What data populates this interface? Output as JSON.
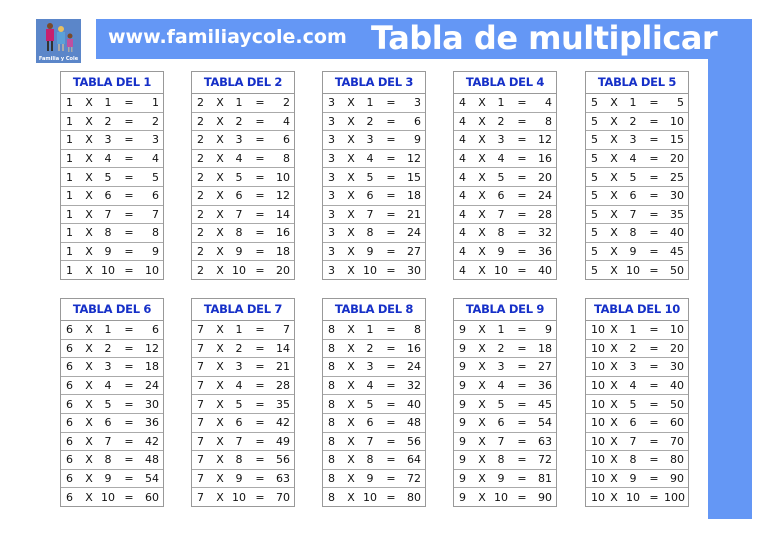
{
  "header": {
    "logo_text": "Familia y Cole",
    "site": "www.familiaycole.com",
    "title": "Tabla de multiplicar"
  },
  "colors": {
    "banner": "#6497f5",
    "table_title": "#1630c8"
  },
  "tables": [
    {
      "title": "TABLA DEL 1",
      "rows": [
        [
          "1",
          "X",
          "1",
          "=",
          "1"
        ],
        [
          "1",
          "X",
          "2",
          "=",
          "2"
        ],
        [
          "1",
          "X",
          "3",
          "=",
          "3"
        ],
        [
          "1",
          "X",
          "4",
          "=",
          "4"
        ],
        [
          "1",
          "X",
          "5",
          "=",
          "5"
        ],
        [
          "1",
          "X",
          "6",
          "=",
          "6"
        ],
        [
          "1",
          "X",
          "7",
          "=",
          "7"
        ],
        [
          "1",
          "X",
          "8",
          "=",
          "8"
        ],
        [
          "1",
          "X",
          "9",
          "=",
          "9"
        ],
        [
          "1",
          "X",
          "10",
          "=",
          "10"
        ]
      ]
    },
    {
      "title": "TABLA DEL 2",
      "rows": [
        [
          "2",
          "X",
          "1",
          "=",
          "2"
        ],
        [
          "2",
          "X",
          "2",
          "=",
          "4"
        ],
        [
          "2",
          "X",
          "3",
          "=",
          "6"
        ],
        [
          "2",
          "X",
          "4",
          "=",
          "8"
        ],
        [
          "2",
          "X",
          "5",
          "=",
          "10"
        ],
        [
          "2",
          "X",
          "6",
          "=",
          "12"
        ],
        [
          "2",
          "X",
          "7",
          "=",
          "14"
        ],
        [
          "2",
          "X",
          "8",
          "=",
          "16"
        ],
        [
          "2",
          "X",
          "9",
          "=",
          "18"
        ],
        [
          "2",
          "X",
          "10",
          "=",
          "20"
        ]
      ]
    },
    {
      "title": "TABLA DEL 3",
      "rows": [
        [
          "3",
          "X",
          "1",
          "=",
          "3"
        ],
        [
          "3",
          "X",
          "2",
          "=",
          "6"
        ],
        [
          "3",
          "X",
          "3",
          "=",
          "9"
        ],
        [
          "3",
          "X",
          "4",
          "=",
          "12"
        ],
        [
          "3",
          "X",
          "5",
          "=",
          "15"
        ],
        [
          "3",
          "X",
          "6",
          "=",
          "18"
        ],
        [
          "3",
          "X",
          "7",
          "=",
          "21"
        ],
        [
          "3",
          "X",
          "8",
          "=",
          "24"
        ],
        [
          "3",
          "X",
          "9",
          "=",
          "27"
        ],
        [
          "3",
          "X",
          "10",
          "=",
          "30"
        ]
      ]
    },
    {
      "title": "TABLA DEL 4",
      "rows": [
        [
          "4",
          "X",
          "1",
          "=",
          "4"
        ],
        [
          "4",
          "X",
          "2",
          "=",
          "8"
        ],
        [
          "4",
          "X",
          "3",
          "=",
          "12"
        ],
        [
          "4",
          "X",
          "4",
          "=",
          "16"
        ],
        [
          "4",
          "X",
          "5",
          "=",
          "20"
        ],
        [
          "4",
          "X",
          "6",
          "=",
          "24"
        ],
        [
          "4",
          "X",
          "7",
          "=",
          "28"
        ],
        [
          "4",
          "X",
          "8",
          "=",
          "32"
        ],
        [
          "4",
          "X",
          "9",
          "=",
          "36"
        ],
        [
          "4",
          "X",
          "10",
          "=",
          "40"
        ]
      ]
    },
    {
      "title": "TABLA DEL 5",
      "rows": [
        [
          "5",
          "X",
          "1",
          "=",
          "5"
        ],
        [
          "5",
          "X",
          "2",
          "=",
          "10"
        ],
        [
          "5",
          "X",
          "3",
          "=",
          "15"
        ],
        [
          "5",
          "X",
          "4",
          "=",
          "20"
        ],
        [
          "5",
          "X",
          "5",
          "=",
          "25"
        ],
        [
          "5",
          "X",
          "6",
          "=",
          "30"
        ],
        [
          "5",
          "X",
          "7",
          "=",
          "35"
        ],
        [
          "5",
          "X",
          "8",
          "=",
          "40"
        ],
        [
          "5",
          "X",
          "9",
          "=",
          "45"
        ],
        [
          "5",
          "X",
          "10",
          "=",
          "50"
        ]
      ]
    },
    {
      "title": "TABLA DEL 6",
      "rows": [
        [
          "6",
          "X",
          "1",
          "=",
          "6"
        ],
        [
          "6",
          "X",
          "2",
          "=",
          "12"
        ],
        [
          "6",
          "X",
          "3",
          "=",
          "18"
        ],
        [
          "6",
          "X",
          "4",
          "=",
          "24"
        ],
        [
          "6",
          "X",
          "5",
          "=",
          "30"
        ],
        [
          "6",
          "X",
          "6",
          "=",
          "36"
        ],
        [
          "6",
          "X",
          "7",
          "=",
          "42"
        ],
        [
          "6",
          "X",
          "8",
          "=",
          "48"
        ],
        [
          "6",
          "X",
          "9",
          "=",
          "54"
        ],
        [
          "6",
          "X",
          "10",
          "=",
          "60"
        ]
      ]
    },
    {
      "title": "TABLA DEL 7",
      "rows": [
        [
          "7",
          "X",
          "1",
          "=",
          "7"
        ],
        [
          "7",
          "X",
          "2",
          "=",
          "14"
        ],
        [
          "7",
          "X",
          "3",
          "=",
          "21"
        ],
        [
          "7",
          "X",
          "4",
          "=",
          "28"
        ],
        [
          "7",
          "X",
          "5",
          "=",
          "35"
        ],
        [
          "7",
          "X",
          "6",
          "=",
          "42"
        ],
        [
          "7",
          "X",
          "7",
          "=",
          "49"
        ],
        [
          "7",
          "X",
          "8",
          "=",
          "56"
        ],
        [
          "7",
          "X",
          "9",
          "=",
          "63"
        ],
        [
          "7",
          "X",
          "10",
          "=",
          "70"
        ]
      ]
    },
    {
      "title": "TABLA DEL 8",
      "rows": [
        [
          "8",
          "X",
          "1",
          "=",
          "8"
        ],
        [
          "8",
          "X",
          "2",
          "=",
          "16"
        ],
        [
          "8",
          "X",
          "3",
          "=",
          "24"
        ],
        [
          "8",
          "X",
          "4",
          "=",
          "32"
        ],
        [
          "8",
          "X",
          "5",
          "=",
          "40"
        ],
        [
          "8",
          "X",
          "6",
          "=",
          "48"
        ],
        [
          "8",
          "X",
          "7",
          "=",
          "56"
        ],
        [
          "8",
          "X",
          "8",
          "=",
          "64"
        ],
        [
          "8",
          "X",
          "9",
          "=",
          "72"
        ],
        [
          "8",
          "X",
          "10",
          "=",
          "80"
        ]
      ]
    },
    {
      "title": "TABLA DEL 9",
      "rows": [
        [
          "9",
          "X",
          "1",
          "=",
          "9"
        ],
        [
          "9",
          "X",
          "2",
          "=",
          "18"
        ],
        [
          "9",
          "X",
          "3",
          "=",
          "27"
        ],
        [
          "9",
          "X",
          "4",
          "=",
          "36"
        ],
        [
          "9",
          "X",
          "5",
          "=",
          "45"
        ],
        [
          "9",
          "X",
          "6",
          "=",
          "54"
        ],
        [
          "9",
          "X",
          "7",
          "=",
          "63"
        ],
        [
          "9",
          "X",
          "8",
          "=",
          "72"
        ],
        [
          "9",
          "X",
          "9",
          "=",
          "81"
        ],
        [
          "9",
          "X",
          "10",
          "=",
          "90"
        ]
      ]
    },
    {
      "title": "TABLA DEL 10",
      "rows": [
        [
          "10",
          "X",
          "1",
          "=",
          "10"
        ],
        [
          "10",
          "X",
          "2",
          "=",
          "20"
        ],
        [
          "10",
          "X",
          "3",
          "=",
          "30"
        ],
        [
          "10",
          "X",
          "4",
          "=",
          "40"
        ],
        [
          "10",
          "X",
          "5",
          "=",
          "50"
        ],
        [
          "10",
          "X",
          "6",
          "=",
          "60"
        ],
        [
          "10",
          "X",
          "7",
          "=",
          "70"
        ],
        [
          "10",
          "X",
          "8",
          "=",
          "80"
        ],
        [
          "10",
          "X",
          "9",
          "=",
          "90"
        ],
        [
          "10",
          "X",
          "10",
          "=",
          "100"
        ]
      ]
    }
  ]
}
